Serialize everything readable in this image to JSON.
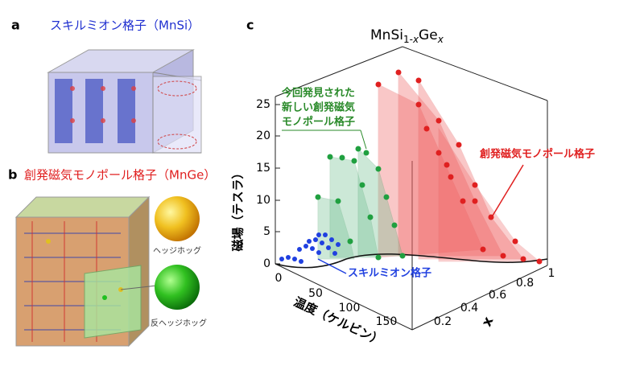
{
  "panel_a": {
    "label": "a",
    "title": "スキルミオン格子（MnSi）"
  },
  "panel_b": {
    "label": "b",
    "title": "創発磁気モノポール格子（MnGe）",
    "hedgehog": "ヘッジホッグ",
    "antihedgehog": "反ヘッジホッグ"
  },
  "panel_c": {
    "label": "c",
    "title_parts": [
      "MnSi",
      "1-",
      "x",
      "Ge",
      "x"
    ],
    "field_axis": {
      "label": "磁場（テスラ）",
      "ticks": [
        "0",
        "5",
        "10",
        "15",
        "20",
        "25"
      ]
    },
    "temperature_axis": {
      "label": "温度（ケルビン）",
      "ticks": [
        "0",
        "50",
        "100",
        "150"
      ]
    },
    "x_axis": {
      "label": "x",
      "ticks": [
        "0.2",
        "0.4",
        "0.6",
        "0.8",
        "1"
      ]
    },
    "annotations": {
      "new_lattice": [
        "今回発見された",
        "新しい創発磁気",
        "モノポール格子"
      ],
      "monopole_lattice": "創発磁気モノポール格子",
      "skyrmion_lattice": "スキルミオン格子"
    }
  }
}
